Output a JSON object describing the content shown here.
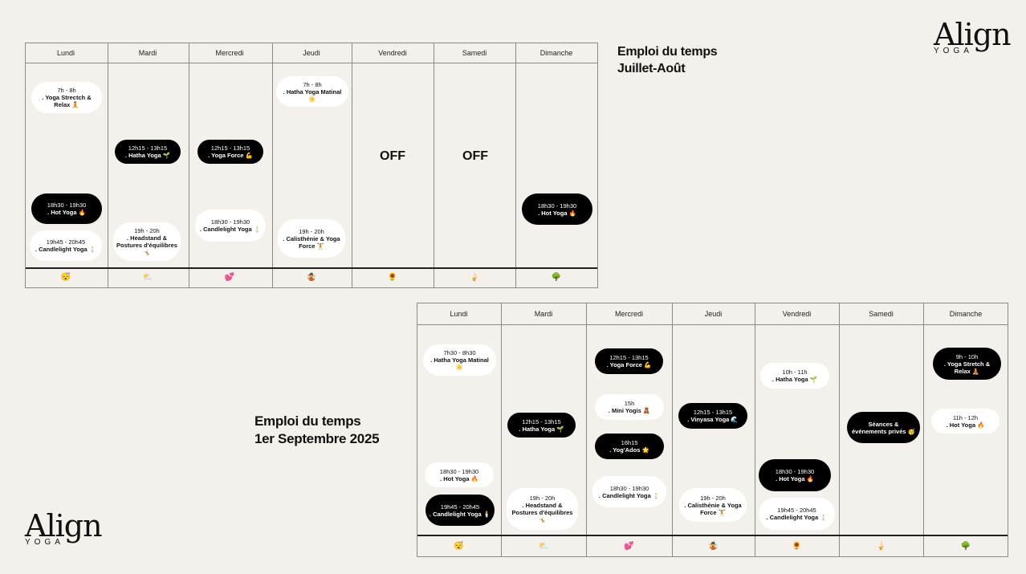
{
  "logo": {
    "main": "Align",
    "sub": "YOGA"
  },
  "summer": {
    "title_line1": "Emploi du temps",
    "title_line2": "Juillet-Août",
    "days": [
      "Lundi",
      "Mardi",
      "Mercredi",
      "Jeudi",
      "Vendredi",
      "Samedi",
      "Dimanche"
    ],
    "emojis": [
      "😴",
      "⛅",
      "💕",
      "🤹",
      "🌻",
      "🍦",
      "🌳"
    ],
    "off_label": "OFF",
    "sessions": [
      {
        "time": "7h - 8h",
        "name": ". Yoga Strectch & Relax 🧘"
      },
      {
        "time": "12h15 - 13h15",
        "name": ". Hatha Yoga 🌱"
      },
      {
        "time": "12h15 - 13h15",
        "name": ". Yoga Force 💪"
      },
      {
        "time": "7h - 8h",
        "name": ". Hatha Yoga Matinal ☀️"
      },
      {
        "time": "18h30 - 19h30",
        "name": ". Hot Yoga 🔥"
      },
      {
        "time": "19h45 - 20h45",
        "name": ". Candlelight Yoga 🕯️"
      },
      {
        "time": "19h - 20h",
        "name": ". Headstand & Postures d'équilibres 🤸"
      },
      {
        "time": "18h30 - 19h30",
        "name": ". Candlelight Yoga 🕯️"
      },
      {
        "time": "19h - 20h",
        "name": ". Calisthénie & Yoga Force 🏋️"
      },
      {
        "time": "18h30 - 19h30",
        "name": ". Hot Yoga 🔥"
      }
    ]
  },
  "september": {
    "title_line1": "Emploi du temps",
    "title_line2": "1er Septembre 2025",
    "days": [
      "Lundi",
      "Mardi",
      "Mercredi",
      "Jeudi",
      "Vendredi",
      "Samedi",
      "Dimanche"
    ],
    "emojis": [
      "😴",
      "⛅",
      "💕",
      "🤹",
      "🌻",
      "🍦",
      "🌳"
    ],
    "sessions": [
      {
        "time": "7h30 - 8h30",
        "name": ". Hatha Yoga Matinal ☀️"
      },
      {
        "time": "18h30 - 19h30",
        "name": ". Hot Yoga 🔥"
      },
      {
        "time": "19h45 - 20h45",
        "name": ". Candlelight Yoga 🕯️"
      },
      {
        "time": "12h15 - 13h15",
        "name": ". Hatha Yoga 🌱"
      },
      {
        "time": "19h - 20h",
        "name": ". Headstand & Postures d'équilibres 🤸"
      },
      {
        "time": "12h15 - 13h15",
        "name": ". Yoga Force 💪"
      },
      {
        "time": "15h",
        "name": ". Mini Yogis 🧸"
      },
      {
        "time": "16h15",
        "name": ". Yog'Ados 🌟"
      },
      {
        "time": "18h30 - 19h30",
        "name": ". Candlelight Yoga 🕯️"
      },
      {
        "time": "12h15 - 13h15",
        "name": ". Vinyasa Yoga 🌊"
      },
      {
        "time": "19h - 20h",
        "name": ". Calisthénie & Yoga Force 🏋️"
      },
      {
        "time": "10h - 11h",
        "name": ". Hatha Yoga 🌱"
      },
      {
        "time": "18h30 - 19h30",
        "name": ". Hot Yoga 🔥"
      },
      {
        "time": "19h45 - 20h45",
        "name": ". Candlelight Yoga 🕯️"
      },
      {
        "time": "",
        "name": "Séances & événements privés 🥳"
      },
      {
        "time": "9h - 10h",
        "name": ". Yoga Stretch & Relax 🧘"
      },
      {
        "time": "11h - 12h",
        "name": ". Hot Yoga 🔥"
      }
    ]
  }
}
